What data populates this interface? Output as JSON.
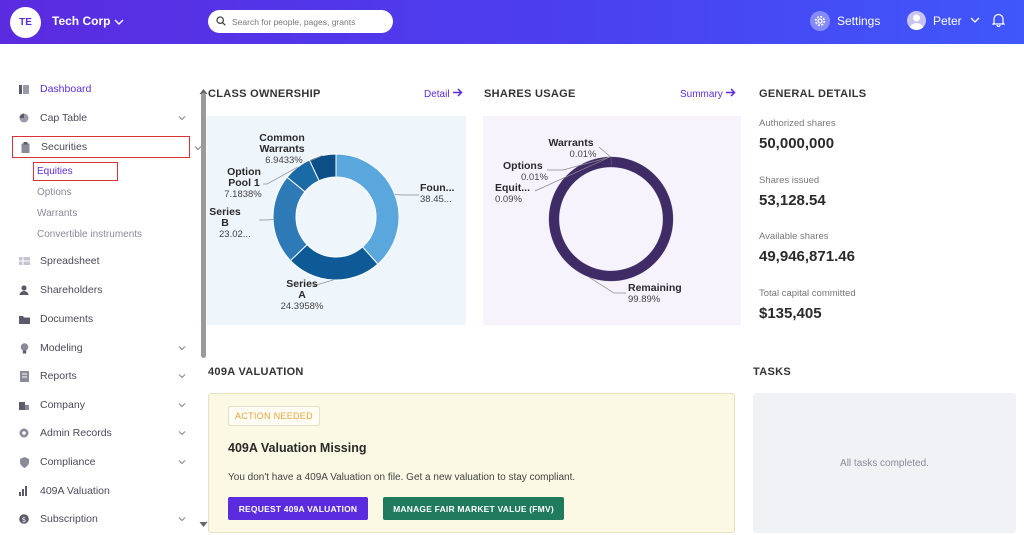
{
  "header": {
    "avatar_initials": "TE",
    "company_name": "Tech Corp",
    "search_placeholder": "Search for people, pages, grants",
    "settings_label": "Settings",
    "user_name": "Peter",
    "gradient_start": "#5b2be0",
    "gradient_end": "#3f57fb"
  },
  "sidebar": {
    "items": [
      {
        "label": "Dashboard",
        "icon": "dashboard-icon",
        "active": true,
        "expandable": false
      },
      {
        "label": "Cap Table",
        "icon": "pie-chart-icon",
        "expandable": true
      },
      {
        "label": "Securities",
        "icon": "clipboard-icon",
        "expandable": true,
        "expanded": true,
        "children": [
          "Equities",
          "Options",
          "Warrants",
          "Convertible instruments"
        ]
      },
      {
        "label": "Spreadsheet",
        "icon": "spreadsheet-icon",
        "expandable": false
      },
      {
        "label": "Shareholders",
        "icon": "person-icon",
        "expandable": false
      },
      {
        "label": "Documents",
        "icon": "folder-icon",
        "expandable": false
      },
      {
        "label": "Modeling",
        "icon": "lightbulb-icon",
        "expandable": true
      },
      {
        "label": "Reports",
        "icon": "report-icon",
        "expandable": true
      },
      {
        "label": "Company",
        "icon": "building-icon",
        "expandable": true
      },
      {
        "label": "Admin Records",
        "icon": "records-icon",
        "expandable": true
      },
      {
        "label": "Compliance",
        "icon": "shield-icon",
        "expandable": true
      },
      {
        "label": "409A Valuation",
        "icon": "bar-chart-icon",
        "expandable": false
      },
      {
        "label": "Subscription",
        "icon": "dollar-icon",
        "expandable": true
      }
    ],
    "highlight_color": "#d9323a"
  },
  "class_ownership": {
    "title": "CLASS OWNERSHIP",
    "link_label": "Detail",
    "chart_data": {
      "type": "pie",
      "donut": true,
      "slices": [
        {
          "name": "Founders",
          "label_lines": [
            "Foun..."
          ],
          "value_text": "38.45...",
          "value": 38.45,
          "color": "#5aa7dd"
        },
        {
          "name": "Series A",
          "label_lines": [
            "Series",
            "A"
          ],
          "value_text": "24.3958%",
          "value": 24.3958,
          "color": "#0d5a96"
        },
        {
          "name": "Series B",
          "label_lines": [
            "Series",
            "B"
          ],
          "value_text": "23.02...",
          "value": 23.02,
          "color": "#2e7ab6"
        },
        {
          "name": "Option Pool 1",
          "label_lines": [
            "Option",
            "Pool 1"
          ],
          "value_text": "7.1838%",
          "value": 7.1838,
          "color": "#1a6aa6"
        },
        {
          "name": "Common Warrants",
          "label_lines": [
            "Common",
            "Warrants"
          ],
          "value_text": "6.9433%",
          "value": 6.9433,
          "color": "#0b4f86"
        }
      ]
    }
  },
  "shares_usage": {
    "title": "SHARES USAGE",
    "link_label": "Summary",
    "chart_data": {
      "type": "pie",
      "donut": true,
      "slices": [
        {
          "name": "Remaining",
          "label_lines": [
            "Remaining"
          ],
          "value_text": "99.89%",
          "value": 99.89,
          "color": "#3f2b66"
        },
        {
          "name": "Equities",
          "label_lines": [
            "Equit..."
          ],
          "value_text": "0.09%",
          "value": 0.09,
          "color": "#5a4a80"
        },
        {
          "name": "Options",
          "label_lines": [
            "Options"
          ],
          "value_text": "0.01%",
          "value": 0.01,
          "color": "#6b5b90"
        },
        {
          "name": "Warrants",
          "label_lines": [
            "Warrants"
          ],
          "value_text": "0.01%",
          "value": 0.01,
          "color": "#7a6aa0"
        }
      ]
    }
  },
  "general_details": {
    "title": "GENERAL DETAILS",
    "rows": [
      {
        "label": "Authorized shares",
        "value": "50,000,000"
      },
      {
        "label": "Shares issued",
        "value": "53,128.54"
      },
      {
        "label": "Available shares",
        "value": "49,946,871.46"
      },
      {
        "label": "Total capital committed",
        "value": "$135,405"
      }
    ]
  },
  "valuation": {
    "title": "409A VALUATION",
    "badge": "ACTION NEEDED",
    "heading": "409A Valuation Missing",
    "description": "You don't have a 409A Valuation on file. Get a new valuation to stay compliant.",
    "primary_button": "REQUEST 409A VALUATION",
    "secondary_button": "MANAGE FAIR MARKET VALUE (FMV)"
  },
  "tasks": {
    "title": "TASKS",
    "empty_text": "All tasks completed."
  }
}
